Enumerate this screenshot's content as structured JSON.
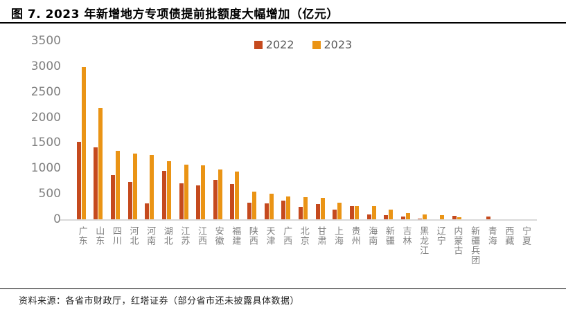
{
  "title": "图 7. 2023 年新增地方专项债提前批额度大幅增加（亿元）",
  "footer": "资料来源：各省市财政厅，红塔证券（部分省市还未披露具体数据）",
  "colors": {
    "series_2022": "#C54A1E",
    "series_2023": "#EA9415",
    "axis_text": "#808080",
    "legend_text": "#595959",
    "baseline": "#D9D9D9",
    "title_text": "#000000"
  },
  "chart_data": {
    "type": "bar",
    "title": "图 7. 2023 年新增地方专项债提前批额度大幅增加（亿元）",
    "xlabel": "",
    "ylabel": "",
    "ylim": [
      0,
      3500
    ],
    "yticks": [
      0,
      500,
      1000,
      1500,
      2000,
      2500,
      3000,
      3500
    ],
    "grid": false,
    "legend_position": "top-center",
    "categories": [
      "广东",
      "山东",
      "四川",
      "河北",
      "河南",
      "湖北",
      "江苏",
      "江西",
      "安徽",
      "福建",
      "陕西",
      "天津",
      "广西",
      "北京",
      "甘肃",
      "上海",
      "贵州",
      "海南",
      "新疆",
      "吉林",
      "黑龙江",
      "辽宁",
      "内蒙古",
      "新疆兵团",
      "青海",
      "西藏",
      "宁夏"
    ],
    "series": [
      {
        "name": "2022",
        "color": "#C54A1E",
        "values": [
          1515,
          1410,
          870,
          735,
          315,
          945,
          705,
          670,
          770,
          690,
          330,
          310,
          370,
          245,
          305,
          190,
          260,
          100,
          80,
          57,
          20,
          0,
          65,
          0,
          57,
          0,
          0
        ]
      },
      {
        "name": "2023",
        "color": "#EA9415",
        "values": [
          2980,
          2190,
          1340,
          1285,
          1260,
          1145,
          1075,
          1055,
          980,
          935,
          545,
          500,
          450,
          435,
          415,
          330,
          260,
          260,
          190,
          125,
          100,
          80,
          35,
          0,
          0,
          0,
          0
        ]
      }
    ]
  }
}
